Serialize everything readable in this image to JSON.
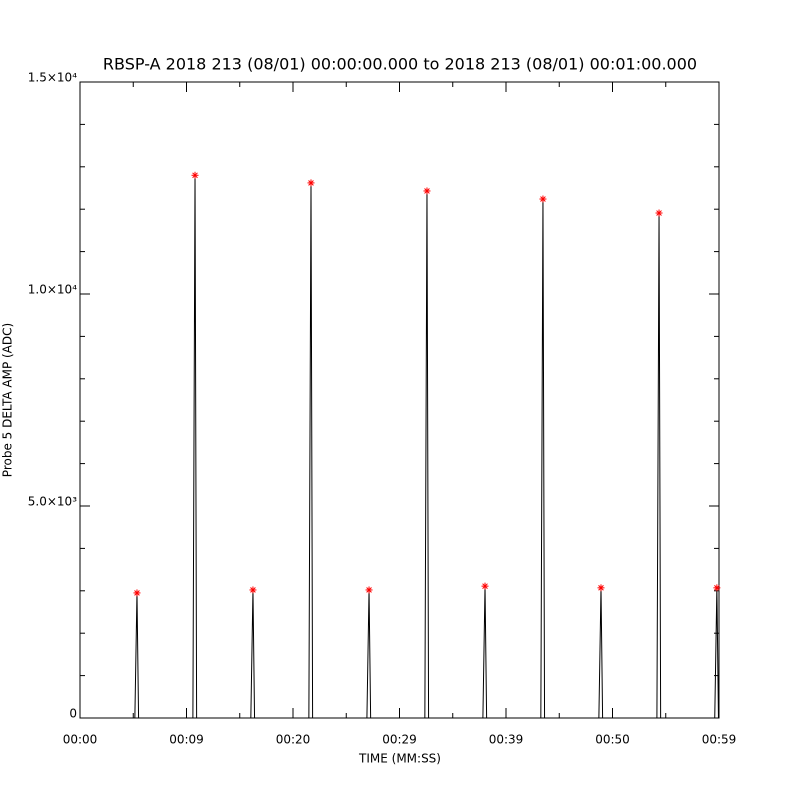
{
  "chart_data": {
    "type": "line",
    "title": "RBSP-A 2018 213 (08/01) 00:00:00.000 to 2018 213 (08/01) 00:01:00.000",
    "x_label": "TIME (MM:SS)",
    "y_label": "Probe 5 DELTA AMP (ADC)",
    "xlim": [
      0,
      60
    ],
    "ylim": [
      0,
      15000
    ],
    "xticks": [
      {
        "value": 0,
        "label": "00:00"
      },
      {
        "value": 10,
        "label": "00:09"
      },
      {
        "value": 20,
        "label": "00:20"
      },
      {
        "value": 30,
        "label": "00:29"
      },
      {
        "value": 40,
        "label": "00:39"
      },
      {
        "value": 50,
        "label": "00:50"
      },
      {
        "value": 60,
        "label": "00:59"
      }
    ],
    "xminorticks": [
      5,
      15,
      25,
      35,
      45,
      55
    ],
    "yticks": [
      0,
      {
        "value": 5000,
        "label": "5.0×10³"
      },
      {
        "value": 10000,
        "label": "1.0×10⁴"
      },
      {
        "value": 15000,
        "label": "1.5×10⁴"
      }
    ],
    "yminorticks": [
      1000,
      2000,
      3000,
      4000,
      6000,
      7000,
      8000,
      9000,
      11000,
      12000,
      13000,
      14000
    ],
    "line": {
      "color": "#000000",
      "x": [
        0,
        5.15,
        5.35,
        5.5,
        10.6,
        10.8,
        10.95,
        16.04,
        16.24,
        16.39,
        21.49,
        21.69,
        21.84,
        26.94,
        27.14,
        27.29,
        32.38,
        32.58,
        32.73,
        37.83,
        38.03,
        38.18,
        43.27,
        43.47,
        43.62,
        48.72,
        48.92,
        49.07,
        54.17,
        54.37,
        54.52,
        59.6,
        59.8,
        59.95,
        60
      ],
      "values": [
        0,
        0,
        2950,
        0,
        0,
        12800,
        0,
        0,
        3020,
        0,
        0,
        12620,
        0,
        0,
        3020,
        0,
        0,
        12430,
        0,
        0,
        3110,
        0,
        0,
        12240,
        0,
        0,
        3070,
        0,
        0,
        11910,
        0,
        0,
        3070,
        0,
        0
      ]
    },
    "peaks": {
      "color": "#ff0000",
      "x": [
        5.35,
        10.8,
        16.24,
        21.69,
        27.14,
        32.58,
        38.03,
        43.47,
        48.92,
        54.37,
        59.8
      ],
      "values": [
        2950,
        12800,
        3020,
        12620,
        3020,
        12430,
        3110,
        12240,
        3070,
        11910,
        3070
      ]
    }
  }
}
